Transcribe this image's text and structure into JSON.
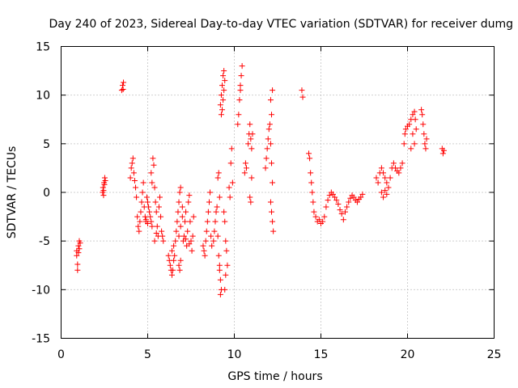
{
  "chart_data": {
    "type": "scatter",
    "title": "Day 240 of 2023, Sidereal Day-to-day VTEC variation (SDTVAR) for receiver dumg",
    "xlabel": "GPS time / hours",
    "ylabel": "SDTVAR / TECUs",
    "xlim": [
      0,
      25
    ],
    "ylim": [
      -15,
      15
    ],
    "xticks": [
      0,
      5,
      10,
      15,
      20,
      25
    ],
    "yticks": [
      -15,
      -10,
      -5,
      0,
      5,
      10,
      15
    ],
    "xtick_labels": [
      "0",
      "5",
      "10",
      "15",
      "20",
      "25"
    ],
    "ytick_labels": [
      "-15",
      "-10",
      "-5",
      "0",
      "5",
      "10",
      "15"
    ],
    "grid": true,
    "marker": "+",
    "color": "#ff0000",
    "series": [
      {
        "name": "SDTVAR",
        "points": [
          [
            0.9,
            -6.0
          ],
          [
            0.9,
            -6.5
          ],
          [
            0.95,
            -7.4
          ],
          [
            0.95,
            -8.0
          ],
          [
            1.0,
            -5.5
          ],
          [
            1.0,
            -6.2
          ],
          [
            1.05,
            -5.8
          ],
          [
            1.05,
            -5.0
          ],
          [
            1.1,
            -5.2
          ],
          [
            2.4,
            0.0
          ],
          [
            2.42,
            0.5
          ],
          [
            2.45,
            -0.3
          ],
          [
            2.48,
            1.0
          ],
          [
            2.5,
            0.8
          ],
          [
            2.52,
            1.5
          ],
          [
            2.55,
            1.2
          ],
          [
            2.45,
            0.2
          ],
          [
            3.5,
            10.5
          ],
          [
            3.55,
            11.0
          ],
          [
            3.6,
            11.3
          ],
          [
            3.58,
            10.6
          ],
          [
            4.0,
            1.5
          ],
          [
            4.05,
            2.5
          ],
          [
            4.1,
            3.0
          ],
          [
            4.15,
            3.5
          ],
          [
            4.2,
            2.0
          ],
          [
            4.25,
            1.2
          ],
          [
            4.3,
            0.5
          ],
          [
            4.35,
            -0.5
          ],
          [
            4.4,
            -2.5
          ],
          [
            4.45,
            -3.5
          ],
          [
            4.5,
            -4.0
          ],
          [
            4.55,
            -3.0
          ],
          [
            4.6,
            -2.0
          ],
          [
            4.65,
            -1.0
          ],
          [
            4.7,
            0.0
          ],
          [
            4.75,
            1.0
          ],
          [
            4.8,
            -1.5
          ],
          [
            4.85,
            -2.5
          ],
          [
            4.9,
            -3.0
          ],
          [
            4.95,
            -0.5
          ],
          [
            5.0,
            -1.0
          ],
          [
            5.05,
            -1.5
          ],
          [
            5.1,
            -2.0
          ],
          [
            5.15,
            -2.5
          ],
          [
            5.2,
            -3.0
          ],
          [
            5.25,
            -3.5
          ],
          [
            5.0,
            -3.2
          ],
          [
            4.9,
            -2.8
          ],
          [
            5.2,
            2.0
          ],
          [
            5.25,
            1.0
          ],
          [
            5.3,
            3.5
          ],
          [
            5.35,
            2.8
          ],
          [
            5.4,
            0.5
          ],
          [
            5.45,
            -1.0
          ],
          [
            5.5,
            -2.0
          ],
          [
            5.55,
            -3.5
          ],
          [
            5.6,
            -4.5
          ],
          [
            5.65,
            -1.5
          ],
          [
            5.7,
            -0.5
          ],
          [
            5.75,
            -2.5
          ],
          [
            5.8,
            -4.0
          ],
          [
            5.85,
            -4.5
          ],
          [
            5.9,
            -5.0
          ],
          [
            5.4,
            -5.0
          ],
          [
            5.5,
            -4.2
          ],
          [
            6.2,
            -6.5
          ],
          [
            6.25,
            -7.0
          ],
          [
            6.3,
            -7.5
          ],
          [
            6.35,
            -8.0
          ],
          [
            6.4,
            -8.5
          ],
          [
            6.45,
            -8.0
          ],
          [
            6.5,
            -7.0
          ],
          [
            6.55,
            -6.5
          ],
          [
            6.6,
            -5.0
          ],
          [
            6.65,
            -4.0
          ],
          [
            6.7,
            -3.0
          ],
          [
            6.75,
            -2.0
          ],
          [
            6.8,
            -1.0
          ],
          [
            6.85,
            0.0
          ],
          [
            6.9,
            0.5
          ],
          [
            6.8,
            -7.5
          ],
          [
            6.85,
            -8.0
          ],
          [
            6.9,
            -7.0
          ],
          [
            6.4,
            -6.0
          ],
          [
            6.5,
            -5.5
          ],
          [
            6.8,
            -4.5
          ],
          [
            6.9,
            -3.5
          ],
          [
            7.0,
            -2.5
          ],
          [
            7.05,
            -5.0
          ],
          [
            7.1,
            -4.5
          ],
          [
            7.15,
            -3.0
          ],
          [
            7.2,
            -2.0
          ],
          [
            7.25,
            -5.5
          ],
          [
            7.3,
            -4.0
          ],
          [
            7.35,
            -1.0
          ],
          [
            7.4,
            -0.3
          ],
          [
            7.45,
            -3.0
          ],
          [
            7.5,
            -5.0
          ],
          [
            7.55,
            -6.0
          ],
          [
            7.6,
            -4.5
          ],
          [
            7.65,
            -2.5
          ],
          [
            7.0,
            -1.5
          ],
          [
            7.2,
            -4.8
          ],
          [
            7.4,
            -5.3
          ],
          [
            8.2,
            -5.5
          ],
          [
            8.25,
            -6.0
          ],
          [
            8.3,
            -6.5
          ],
          [
            8.35,
            -5.0
          ],
          [
            8.4,
            -4.0
          ],
          [
            8.45,
            -3.0
          ],
          [
            8.5,
            -2.0
          ],
          [
            8.55,
            -1.0
          ],
          [
            8.6,
            0.0
          ],
          [
            8.65,
            -4.5
          ],
          [
            8.7,
            -5.5
          ],
          [
            8.8,
            -5.0
          ],
          [
            8.85,
            -4.0
          ],
          [
            8.9,
            -3.0
          ],
          [
            8.95,
            -2.0
          ],
          [
            9.0,
            -1.5
          ],
          [
            9.05,
            1.5
          ],
          [
            9.1,
            2.0
          ],
          [
            9.15,
            -0.5
          ],
          [
            9.05,
            -4.5
          ],
          [
            9.1,
            -6.5
          ],
          [
            9.15,
            -8.0
          ],
          [
            9.2,
            -9.0
          ],
          [
            9.25,
            -10.0
          ],
          [
            9.2,
            -10.5
          ],
          [
            9.15,
            -7.5
          ],
          [
            9.2,
            9.0
          ],
          [
            9.25,
            10.0
          ],
          [
            9.3,
            11.0
          ],
          [
            9.35,
            12.0
          ],
          [
            9.3,
            8.5
          ],
          [
            9.35,
            9.5
          ],
          [
            9.4,
            10.5
          ],
          [
            9.45,
            11.5
          ],
          [
            9.4,
            12.5
          ],
          [
            9.25,
            8.0
          ],
          [
            9.4,
            -2.0
          ],
          [
            9.45,
            -3.0
          ],
          [
            9.5,
            -5.0
          ],
          [
            9.55,
            -6.0
          ],
          [
            9.6,
            -7.5
          ],
          [
            9.5,
            -8.5
          ],
          [
            9.45,
            -10.0
          ],
          [
            9.7,
            0.5
          ],
          [
            9.75,
            -0.5
          ],
          [
            9.8,
            3.0
          ],
          [
            9.85,
            4.5
          ],
          [
            9.9,
            1.0
          ],
          [
            10.2,
            7.0
          ],
          [
            10.25,
            8.0
          ],
          [
            10.3,
            9.5
          ],
          [
            10.35,
            10.5
          ],
          [
            10.4,
            12.0
          ],
          [
            10.45,
            13.0
          ],
          [
            10.35,
            11.0
          ],
          [
            10.6,
            2.0
          ],
          [
            10.65,
            3.0
          ],
          [
            10.7,
            2.5
          ],
          [
            10.8,
            5.0
          ],
          [
            10.85,
            6.0
          ],
          [
            10.9,
            7.0
          ],
          [
            10.95,
            5.5
          ],
          [
            11.0,
            4.5
          ],
          [
            11.05,
            6.0
          ],
          [
            10.9,
            -0.5
          ],
          [
            10.95,
            -1.0
          ],
          [
            11.0,
            1.5
          ],
          [
            11.8,
            2.5
          ],
          [
            11.85,
            3.5
          ],
          [
            11.9,
            4.5
          ],
          [
            11.95,
            5.5
          ],
          [
            12.0,
            6.5
          ],
          [
            12.05,
            7.0
          ],
          [
            12.1,
            5.0
          ],
          [
            12.15,
            3.0
          ],
          [
            12.2,
            1.0
          ],
          [
            12.1,
            -1.0
          ],
          [
            12.15,
            -2.0
          ],
          [
            12.2,
            -3.0
          ],
          [
            12.25,
            -4.0
          ],
          [
            12.2,
            10.5
          ],
          [
            12.1,
            9.5
          ],
          [
            12.15,
            8.0
          ],
          [
            13.9,
            10.5
          ],
          [
            13.95,
            9.8
          ],
          [
            14.3,
            4.0
          ],
          [
            14.35,
            3.5
          ],
          [
            14.4,
            2.0
          ],
          [
            14.45,
            1.0
          ],
          [
            14.5,
            0.0
          ],
          [
            14.55,
            -1.0
          ],
          [
            14.6,
            -2.0
          ],
          [
            14.7,
            -2.5
          ],
          [
            14.8,
            -3.0
          ],
          [
            14.9,
            -2.8
          ],
          [
            15.0,
            -3.2
          ],
          [
            15.1,
            -3.0
          ],
          [
            15.2,
            -2.5
          ],
          [
            15.3,
            -1.5
          ],
          [
            15.4,
            -0.8
          ],
          [
            15.5,
            -0.3
          ],
          [
            15.6,
            0.0
          ],
          [
            15.7,
            -0.2
          ],
          [
            15.8,
            -0.5
          ],
          [
            15.9,
            -0.8
          ],
          [
            16.0,
            -1.2
          ],
          [
            16.1,
            -1.8
          ],
          [
            16.2,
            -2.2
          ],
          [
            16.3,
            -2.8
          ],
          [
            16.4,
            -2.0
          ],
          [
            16.5,
            -1.5
          ],
          [
            16.6,
            -1.0
          ],
          [
            16.7,
            -0.6
          ],
          [
            16.8,
            -0.3
          ],
          [
            16.9,
            -0.5
          ],
          [
            17.0,
            -0.8
          ],
          [
            17.1,
            -1.0
          ],
          [
            17.2,
            -0.7
          ],
          [
            17.3,
            -0.5
          ],
          [
            17.4,
            -0.2
          ],
          [
            18.2,
            1.5
          ],
          [
            18.3,
            1.0
          ],
          [
            18.4,
            2.0
          ],
          [
            18.5,
            2.5
          ],
          [
            18.6,
            2.0
          ],
          [
            18.7,
            1.5
          ],
          [
            18.8,
            1.0
          ],
          [
            18.9,
            0.5
          ],
          [
            19.0,
            1.5
          ],
          [
            19.1,
            2.5
          ],
          [
            19.2,
            3.0
          ],
          [
            19.3,
            2.5
          ],
          [
            18.5,
            0.0
          ],
          [
            18.6,
            -0.5
          ],
          [
            18.7,
            0.2
          ],
          [
            18.8,
            -0.2
          ],
          [
            19.4,
            2.2
          ],
          [
            19.5,
            2.0
          ],
          [
            19.6,
            2.5
          ],
          [
            19.7,
            3.0
          ],
          [
            19.8,
            5.0
          ],
          [
            19.85,
            6.0
          ],
          [
            19.9,
            6.5
          ],
          [
            20.0,
            6.8
          ],
          [
            20.1,
            7.0
          ],
          [
            20.2,
            7.5
          ],
          [
            20.3,
            8.0
          ],
          [
            20.4,
            8.3
          ],
          [
            20.45,
            7.5
          ],
          [
            20.5,
            6.5
          ],
          [
            20.3,
            6.0
          ],
          [
            20.4,
            5.0
          ],
          [
            20.2,
            4.5
          ],
          [
            20.8,
            8.5
          ],
          [
            20.85,
            8.0
          ],
          [
            20.9,
            7.0
          ],
          [
            20.95,
            6.0
          ],
          [
            21.0,
            5.0
          ],
          [
            21.05,
            4.5
          ],
          [
            21.1,
            5.5
          ],
          [
            22.0,
            4.5
          ],
          [
            22.05,
            4.0
          ],
          [
            22.1,
            4.3
          ]
        ]
      }
    ]
  }
}
